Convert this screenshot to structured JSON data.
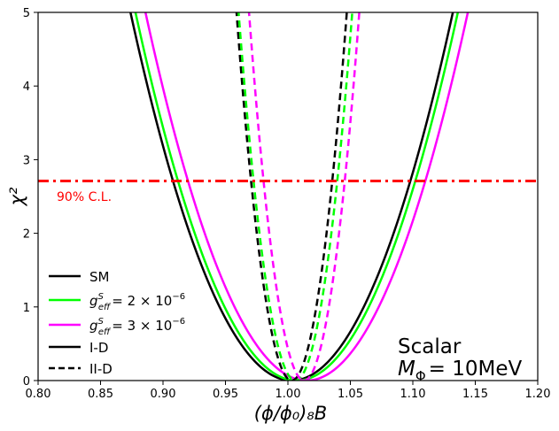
{
  "chart_data": {
    "type": "line",
    "title": "",
    "xlabel": "(ϕ/ϕ₀)₈B",
    "ylabel": "χ²",
    "xlim": [
      0.8,
      1.2
    ],
    "ylim": [
      0,
      5
    ],
    "x_ticks": [
      "0.80",
      "0.85",
      "0.90",
      "0.95",
      "1.00",
      "1.05",
      "1.10",
      "1.15",
      "1.20"
    ],
    "y_ticks": [
      "0",
      "1",
      "2",
      "3",
      "4",
      "5"
    ],
    "grid": false,
    "annotation": {
      "title": "Scalar",
      "mass_symbol": "M",
      "mass_subscript": "Φ",
      "mass_value": "= 10MeV"
    },
    "reference_line": {
      "label": "90% C.L.",
      "y": 2.71,
      "color": "#ff0000",
      "style": "dash-dot"
    },
    "legend": {
      "placement": "lower-left",
      "entries": [
        {
          "key": "sm",
          "label": "SM",
          "color": "#000000",
          "style": "solid"
        },
        {
          "key": "g2",
          "label_base": "g",
          "label_sup": "S",
          "label_sub": "eff",
          "label_value": "= 2 × 10",
          "label_exp": "−6",
          "color": "#00ff00",
          "style": "solid"
        },
        {
          "key": "g3",
          "label_base": "g",
          "label_sup": "S",
          "label_sub": "eff",
          "label_value": "= 3 × 10",
          "label_exp": "−6",
          "color": "#ff00ff",
          "style": "solid"
        },
        {
          "key": "id",
          "label": "I-D",
          "color": "#000000",
          "style": "solid"
        },
        {
          "key": "iid",
          "label": "II-D",
          "color": "#000000",
          "style": "dashed"
        }
      ]
    },
    "series": [
      {
        "name": "SM, I-D",
        "color": "#000000",
        "style": "solid",
        "center": 1.003,
        "halfwidth_at_chi2_2.71": 0.095
      },
      {
        "name": "g_eff^S = 2×10^-6, I-D",
        "color": "#00ff00",
        "style": "solid",
        "center": 1.007,
        "halfwidth_at_chi2_2.71": 0.095
      },
      {
        "name": "g_eff^S = 3×10^-6, I-D",
        "color": "#ff00ff",
        "style": "solid",
        "center": 1.015,
        "halfwidth_at_chi2_2.71": 0.095
      },
      {
        "name": "SM, II-D",
        "color": "#000000",
        "style": "dashed",
        "center": 1.003,
        "halfwidth_at_chi2_2.71": 0.0325
      },
      {
        "name": "g_eff^S = 2×10^-6, II-D",
        "color": "#00ff00",
        "style": "dashed",
        "center": 1.006,
        "halfwidth_at_chi2_2.71": 0.0335
      },
      {
        "name": "g_eff^S = 3×10^-6, II-D",
        "color": "#ff00ff",
        "style": "dashed",
        "center": 1.013,
        "halfwidth_at_chi2_2.71": 0.0325
      }
    ]
  }
}
